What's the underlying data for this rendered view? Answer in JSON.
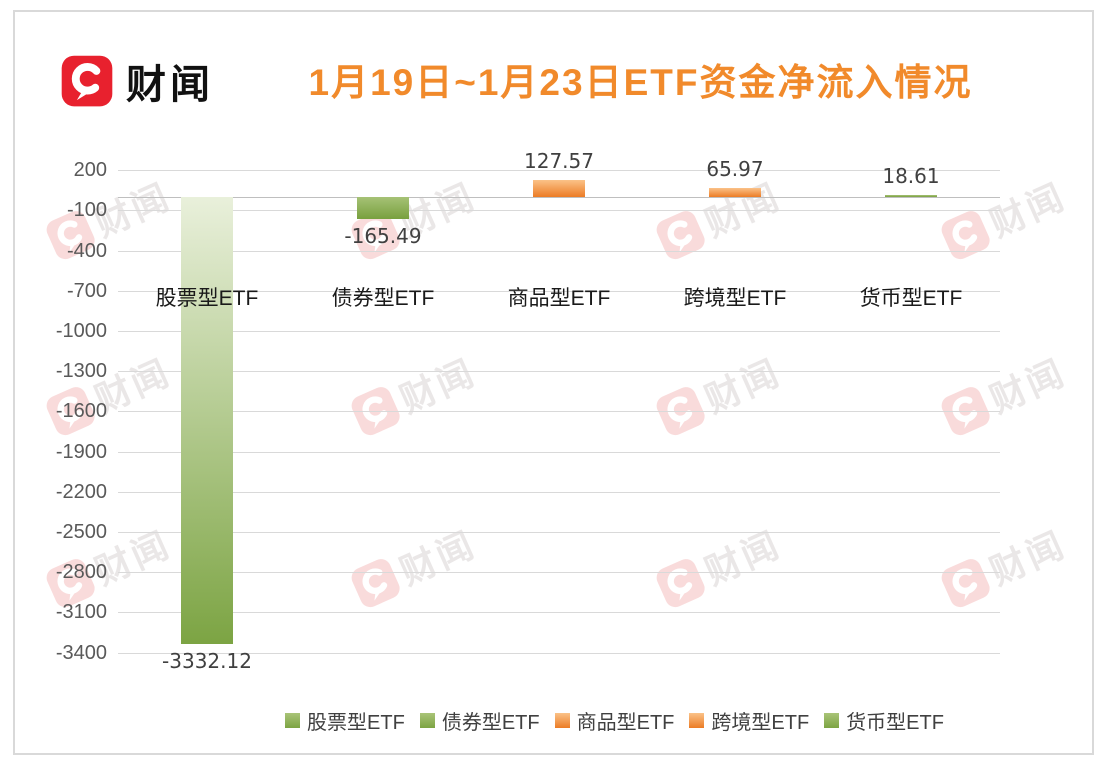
{
  "brand": {
    "name": "财闻"
  },
  "watermark": {
    "text": "财闻"
  },
  "chart_data": {
    "type": "bar",
    "title": "1月19日~1月23日ETF资金净流入情况",
    "categories": [
      "股票型ETF",
      "债券型ETF",
      "商品型ETF",
      "跨境型ETF",
      "货币型ETF"
    ],
    "values": [
      -3332.12,
      -165.49,
      127.57,
      65.97,
      18.61
    ],
    "value_labels": [
      "-3332.12",
      "-165.49",
      "127.57",
      "65.97",
      "18.61"
    ],
    "xlabel": "",
    "ylabel": "",
    "y_ticks": [
      200,
      -100,
      -400,
      -700,
      -1000,
      -1300,
      -1600,
      -1900,
      -2200,
      -2500,
      -2800,
      -3100,
      -3400
    ],
    "ylim": [
      -3400,
      200
    ],
    "grid": true,
    "legend_position": "bottom",
    "legend": [
      "股票型ETF",
      "债券型ETF",
      "商品型ETF",
      "跨境型ETF",
      "货币型ETF"
    ],
    "series_colors": [
      {
        "top": "#E9F0DB",
        "bottom": "#7CA443"
      },
      {
        "top": "#A6C276",
        "bottom": "#78A03E"
      },
      {
        "top": "#FBC288",
        "bottom": "#EC7C25"
      },
      {
        "top": "#FBC288",
        "bottom": "#EC7C25"
      },
      {
        "top": "#A6C276",
        "bottom": "#78A03E"
      }
    ],
    "legend_colors": [
      {
        "top": "#A9C478",
        "bottom": "#7CA443"
      },
      {
        "top": "#A9C478",
        "bottom": "#7CA443"
      },
      {
        "top": "#FBC288",
        "bottom": "#EC7C25"
      },
      {
        "top": "#FBC288",
        "bottom": "#EC7C25"
      },
      {
        "top": "#A9C478",
        "bottom": "#7CA443"
      }
    ]
  },
  "colors": {
    "title": "#F18A2B",
    "logo_red": "#E8212E",
    "watermark_red": "#E23B3B",
    "gridline": "#D9D9D9",
    "zero_line": "#BFBFBF",
    "tick_label": "#595959",
    "value_label": "#404040",
    "category_label": "#1A1A1A",
    "legend_label": "#404040",
    "border": "#D9D9D9"
  }
}
